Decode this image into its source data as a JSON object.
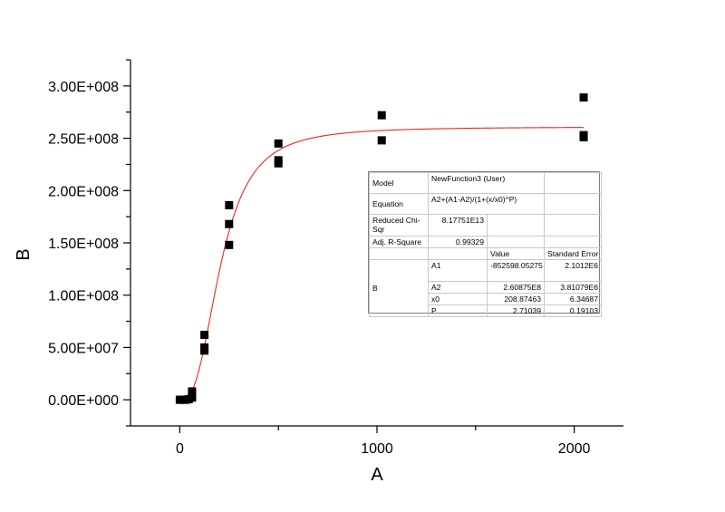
{
  "chart_data": {
    "type": "scatter",
    "xlabel": "A",
    "ylabel": "B",
    "xlim": [
      -250,
      2250
    ],
    "ylim": [
      -25000000,
      325000000
    ],
    "x_ticks": [
      0,
      1000,
      2000
    ],
    "x_tick_labels": [
      "0",
      "1000",
      "2000"
    ],
    "y_ticks": [
      0,
      50000000,
      100000000,
      150000000,
      200000000,
      250000000,
      300000000
    ],
    "y_tick_labels": [
      "0.00E+000",
      "5.00E+007",
      "1.00E+008",
      "1.50E+008",
      "2.00E+008",
      "2.50E+008",
      "3.00E+008"
    ],
    "grid": false,
    "series": [
      {
        "type": "scatter",
        "color": "#000000",
        "marker": "square",
        "points": [
          [
            0,
            0
          ],
          [
            15,
            0
          ],
          [
            30,
            0
          ],
          [
            45,
            500000
          ],
          [
            62,
            2000000
          ],
          [
            62,
            5000000
          ],
          [
            62,
            8000000
          ],
          [
            125,
            47000000
          ],
          [
            125,
            50000000
          ],
          [
            125,
            62000000
          ],
          [
            250,
            148000000
          ],
          [
            250,
            168000000
          ],
          [
            250,
            186000000
          ],
          [
            500,
            226000000
          ],
          [
            500,
            229000000
          ],
          [
            500,
            245000000
          ],
          [
            1024,
            248000000
          ],
          [
            1024,
            272000000
          ],
          [
            2048,
            251000000
          ],
          [
            2048,
            253000000
          ],
          [
            2048,
            289000000
          ]
        ]
      },
      {
        "type": "line",
        "color": "#e8281e",
        "model": "A2+(A1-A2)/(1+(x/x0)^P)",
        "params": {
          "A1": -852598.05275,
          "A2": 260875000,
          "x0": 208.87463,
          "P": 2.71039
        },
        "x_range": [
          0,
          2048
        ]
      }
    ]
  },
  "fit_table": {
    "model_label": "Model",
    "model_value": "NewFunction3 (User)",
    "equation_label": "Equation",
    "equation_value": "A2+(A1-A2)/(1+(x/x0)^P)",
    "chisqr_label": "Reduced Chi-Sqr",
    "chisqr_value": "8.17751E13",
    "rsq_label": "Adj. R-Square",
    "rsq_value": "0.99329",
    "col_value": "Value",
    "col_error": "Standard Error",
    "group_label": "B",
    "params": [
      {
        "name": "A1",
        "value": "-852598.05275",
        "error": "2.1012E6"
      },
      {
        "name": "A2",
        "value": "2.60875E8",
        "error": "3.81079E6"
      },
      {
        "name": "x0",
        "value": "208.87463",
        "error": "6.34687"
      },
      {
        "name": "P",
        "value": "2.71039",
        "error": "0.19103"
      }
    ]
  }
}
